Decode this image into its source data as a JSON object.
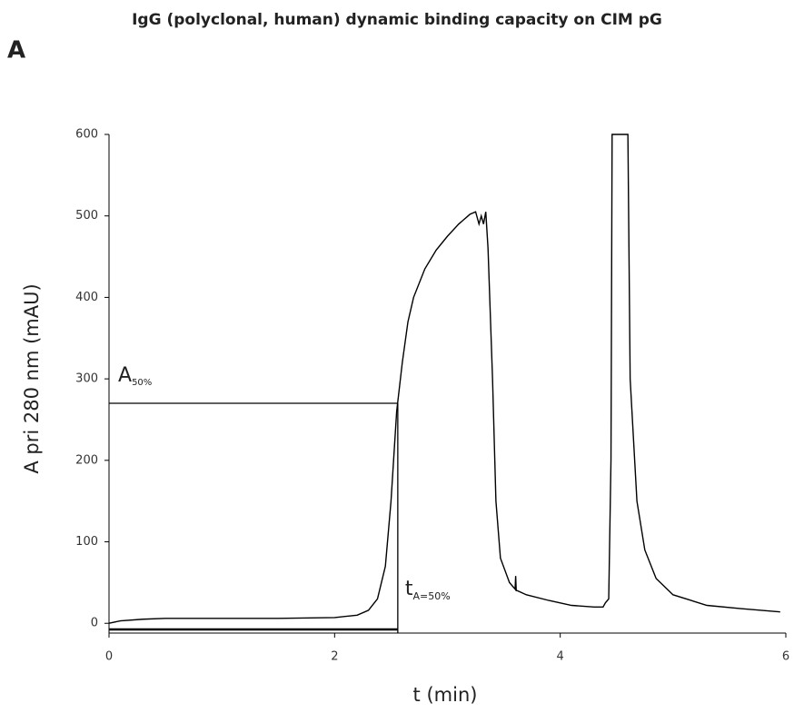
{
  "chart_data": {
    "type": "line",
    "title": "IgG (polyclonal, human) dynamic binding capacity on CIM pG",
    "panel_label": "A",
    "x_label": "t (min)",
    "y_label": "A pri 280 nm (mAU)",
    "xlim": [
      0,
      6
    ],
    "ylim": [
      -12,
      600
    ],
    "xticks": [
      0,
      2,
      4,
      6
    ],
    "yticks": [
      0,
      100,
      200,
      300,
      400,
      500,
      600
    ],
    "series": [
      {
        "color": "#000000",
        "x": [
          0,
          0.1,
          0.3,
          0.5,
          1,
          1.5,
          2,
          2.2,
          2.3,
          2.38,
          2.45,
          2.5,
          2.55,
          2.6,
          2.65,
          2.7,
          2.8,
          2.9,
          3.0,
          3.1,
          3.2,
          3.25,
          3.28,
          3.3,
          3.32,
          3.34,
          3.36,
          3.4,
          3.43,
          3.47,
          3.55,
          3.6,
          3.605,
          3.61,
          3.62,
          3.7,
          3.9,
          4.1,
          4.3,
          4.38,
          4.4,
          4.43,
          4.45,
          4.46,
          4.6,
          4.62,
          4.68,
          4.75,
          4.85,
          5.0,
          5.3,
          5.6,
          5.95
        ],
        "values": [
          0,
          3,
          5,
          6,
          6,
          6,
          7,
          10,
          16,
          30,
          70,
          150,
          260,
          320,
          370,
          400,
          435,
          458,
          475,
          490,
          502,
          505,
          490,
          500,
          490,
          505,
          460,
          300,
          150,
          80,
          50,
          42,
          58,
          40,
          40,
          35,
          28,
          22,
          20,
          20,
          25,
          30,
          200,
          600,
          600,
          300,
          150,
          90,
          55,
          35,
          22,
          18,
          14
        ]
      }
    ],
    "annotations": {
      "a50": {
        "text": "A",
        "sub": "50%",
        "value": 270
      },
      "t50": {
        "text": "t",
        "sub": "A=50%",
        "value": 2.56
      }
    }
  }
}
